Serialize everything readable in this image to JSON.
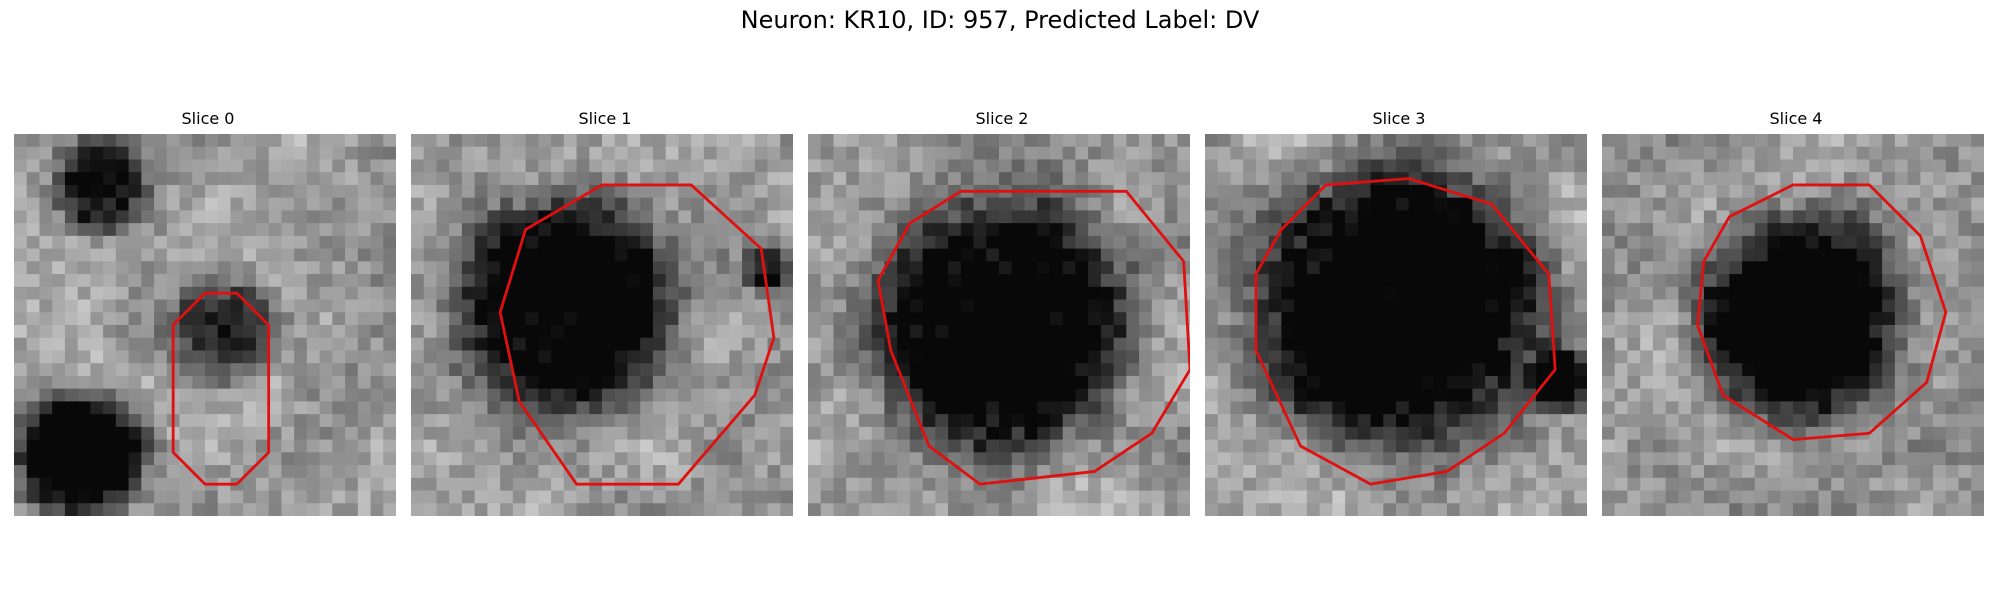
{
  "figure": {
    "title": "Neuron: KR10, ID: 957, Predicted Label: DV"
  },
  "panels": [
    {
      "title": "Slice 0",
      "seed": 11,
      "spots": [
        [
          0.22,
          0.12,
          0.12,
          0.55
        ],
        [
          0.16,
          0.85,
          0.17,
          0.85
        ],
        [
          0.55,
          0.52,
          0.14,
          0.45
        ]
      ],
      "contour": [
        [
          125,
          150
        ],
        [
          150,
          125
        ],
        [
          175,
          125
        ],
        [
          200,
          150
        ],
        [
          200,
          250
        ],
        [
          175,
          275
        ],
        [
          150,
          275
        ],
        [
          125,
          250
        ]
      ]
    },
    {
      "title": "Slice 1",
      "seed": 23,
      "spots": [
        [
          0.4,
          0.45,
          0.28,
          0.85
        ],
        [
          0.95,
          0.35,
          0.06,
          0.6
        ]
      ],
      "contour": [
        [
          90,
          75
        ],
        [
          150,
          40
        ],
        [
          220,
          40
        ],
        [
          275,
          90
        ],
        [
          285,
          160
        ],
        [
          270,
          205
        ],
        [
          210,
          275
        ],
        [
          130,
          275
        ],
        [
          85,
          210
        ],
        [
          70,
          140
        ]
      ]
    },
    {
      "title": "Slice 2",
      "seed": 37,
      "spots": [
        [
          0.5,
          0.5,
          0.34,
          0.8
        ]
      ],
      "contour": [
        [
          80,
          70
        ],
        [
          120,
          45
        ],
        [
          250,
          45
        ],
        [
          295,
          100
        ],
        [
          300,
          185
        ],
        [
          270,
          235
        ],
        [
          225,
          265
        ],
        [
          135,
          275
        ],
        [
          95,
          245
        ],
        [
          65,
          170
        ],
        [
          55,
          115
        ]
      ]
    },
    {
      "title": "Slice 3",
      "seed": 41,
      "spots": [
        [
          0.5,
          0.45,
          0.38,
          0.88
        ],
        [
          0.95,
          0.65,
          0.08,
          0.7
        ]
      ],
      "contour": [
        [
          60,
          75
        ],
        [
          95,
          40
        ],
        [
          160,
          35
        ],
        [
          225,
          55
        ],
        [
          270,
          110
        ],
        [
          275,
          185
        ],
        [
          235,
          235
        ],
        [
          190,
          265
        ],
        [
          130,
          275
        ],
        [
          75,
          245
        ],
        [
          40,
          170
        ],
        [
          40,
          110
        ]
      ]
    },
    {
      "title": "Slice 4",
      "seed": 53,
      "spots": [
        [
          0.52,
          0.48,
          0.27,
          0.82
        ]
      ],
      "contour": [
        [
          100,
          65
        ],
        [
          150,
          40
        ],
        [
          210,
          40
        ],
        [
          250,
          80
        ],
        [
          270,
          140
        ],
        [
          255,
          195
        ],
        [
          210,
          235
        ],
        [
          150,
          240
        ],
        [
          95,
          205
        ],
        [
          75,
          150
        ],
        [
          80,
          100
        ]
      ]
    }
  ]
}
